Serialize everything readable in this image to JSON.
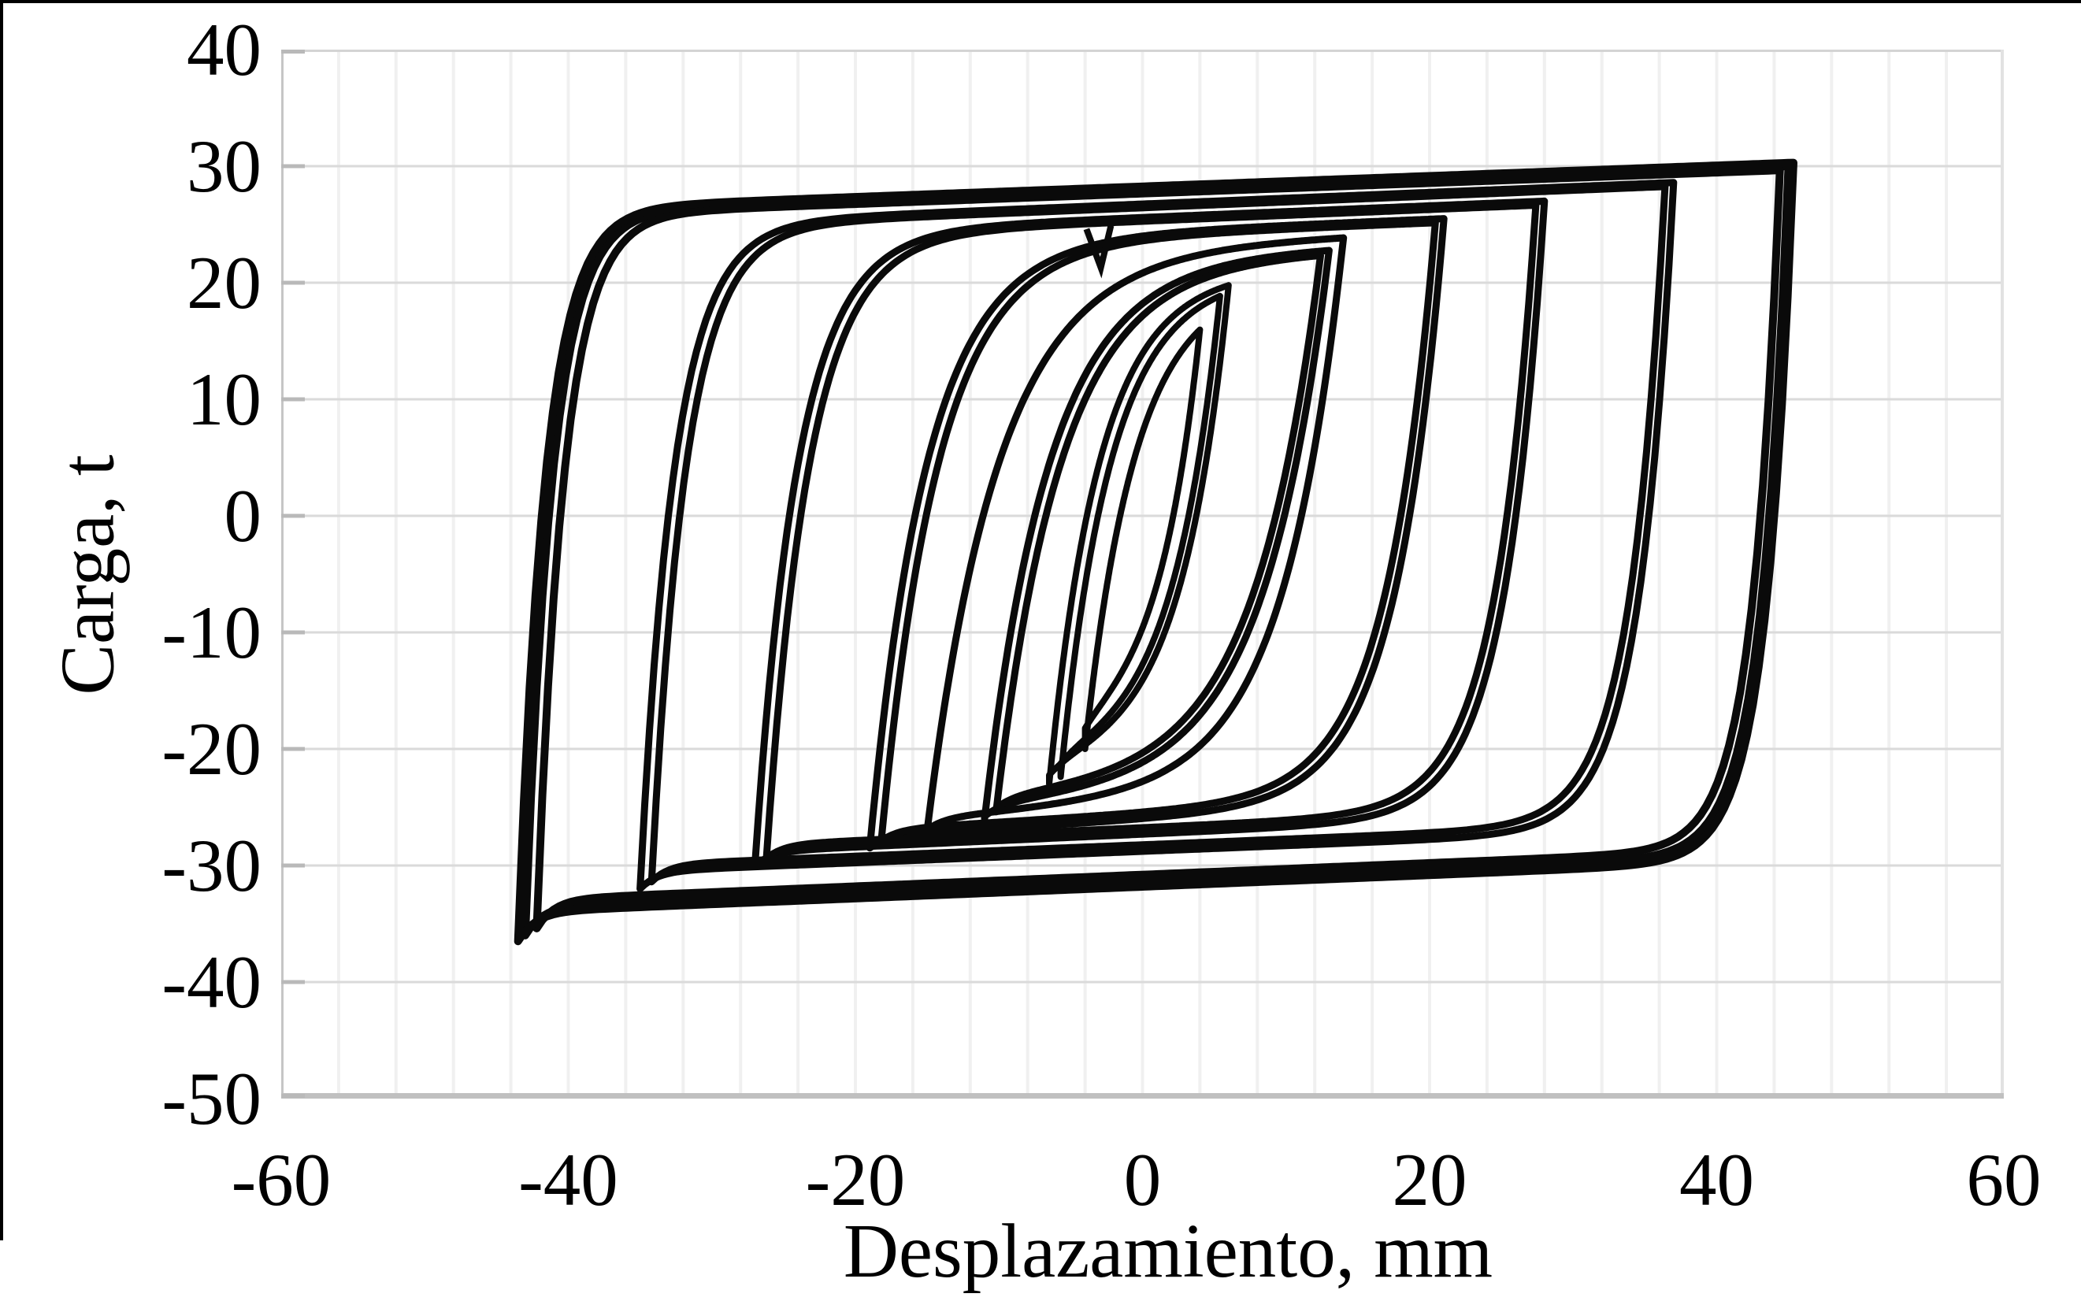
{
  "figure": {
    "background": "#ffffff",
    "frame_color": "#000000"
  },
  "chart_data": {
    "type": "line",
    "subtype": "hysteresis-loops",
    "title": "",
    "xlabel": "Desplazamiento, mm",
    "ylabel": "Carga, t",
    "xlim": [
      -60,
      60
    ],
    "ylim": [
      -50,
      40
    ],
    "x_major_step": 20,
    "x_minor_step": 4,
    "y_major_step": 10,
    "grid": {
      "vertical_minor": true,
      "horizontal_major": true,
      "legend": "none"
    },
    "x_ticks": [
      -60,
      -40,
      -20,
      0,
      20,
      40,
      60
    ],
    "x_tick_labels": [
      "-60",
      "-40",
      "-20",
      "0",
      "20",
      "40",
      "60"
    ],
    "y_ticks": [
      40,
      30,
      20,
      10,
      0,
      -10,
      -20,
      -30,
      -40,
      -50
    ],
    "y_tick_labels": [
      "40",
      "30",
      "20",
      "10",
      "0",
      "-10",
      "-20",
      "-30",
      "-40",
      "-50"
    ],
    "series_color": "#0a0a0a",
    "grid_minor_color": "#f0f0f0",
    "grid_major_color": "#dadada",
    "tick_color": "#b9b9b9",
    "border_light_color": "#d4d4d4",
    "border_bottom_color": "#c0c0c0",
    "cycles": [
      {
        "xneg": -4,
        "xpos": 4,
        "p_top": 20,
        "w_load": 3.5,
        "p_neg": -20,
        "hook": 1,
        "s_lo": 0.5,
        "w_unload": 2.8,
        "s_up": 0.05,
        "passes": 1,
        "width": 8
      },
      {
        "xneg": -6.5,
        "xpos": 6,
        "p_top": 21,
        "w_load": 3.5,
        "p_neg": -23,
        "hook": 1,
        "s_lo": 0.33,
        "w_unload": 3.2,
        "s_up": 0.05,
        "passes": 2,
        "width": 8
      },
      {
        "xneg": -11,
        "xpos": 13,
        "p_top": 23,
        "w_load": 4.5,
        "p_neg": -26,
        "hook": 1,
        "s_lo": 0.125,
        "w_unload": 4.5,
        "s_up": 0.05,
        "passes": 2,
        "width": 9
      },
      {
        "xneg": -15,
        "xpos": 14,
        "p_top": 24,
        "w_load": 5,
        "p_neg": -27,
        "hook": 1,
        "s_lo": 0.103,
        "w_unload": 4.2,
        "s_up": 0.05,
        "passes": 1,
        "width": 9
      },
      {
        "xneg": -19,
        "xpos": 21,
        "p_top": 25.5,
        "w_load": 4,
        "p_neg": -28.5,
        "hook": 1,
        "s_lo": 0.075,
        "w_unload": 3.4,
        "s_up": 0.05,
        "passes": 2,
        "width": 9
      },
      {
        "xneg": -27,
        "xpos": 28,
        "p_top": 27,
        "w_load": 3,
        "p_neg": -30,
        "hook": 1.2,
        "s_lo": 0.055,
        "w_unload": 2.8,
        "s_up": 0.05,
        "passes": 2,
        "width": 9
      },
      {
        "xneg": -35,
        "xpos": 37,
        "p_top": 28.6,
        "w_load": 2.4,
        "p_neg": -32,
        "hook": 1.5,
        "s_lo": 0.049,
        "w_unload": 2.4,
        "s_up": 0.05,
        "passes": 2,
        "width": 9
      },
      {
        "xneg": -43,
        "xpos": 45,
        "p_top": 30,
        "w_load": 1.9,
        "p_neg": -36,
        "hook": 2.5,
        "s_lo": 0.05,
        "w_unload": 1.9,
        "s_up": 0.045,
        "passes": 3,
        "width": 10
      }
    ],
    "notch": {
      "points": [
        [
          -3.9,
          24.6
        ],
        [
          -2.9,
          21.3
        ],
        [
          -2.2,
          24.9
        ]
      ]
    }
  },
  "axes": {
    "x_title": "Desplazamiento, mm",
    "y_title": "Carga, t"
  }
}
